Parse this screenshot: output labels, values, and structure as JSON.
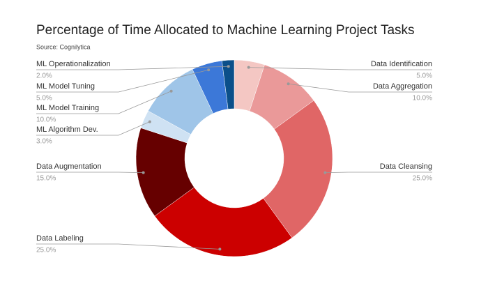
{
  "chart_data": {
    "type": "donut",
    "title": "Percentage of Time Allocated to Machine Learning Project Tasks",
    "subtitle": "Source: Cognilytica",
    "categories": [
      "Data Identification",
      "Data Aggregation",
      "Data Cleansing",
      "Data Labeling",
      "Data Augmentation",
      "ML Algorithm Dev.",
      "ML Model Training",
      "ML Model Tuning",
      "ML Operationalization"
    ],
    "values": [
      5,
      10,
      25,
      25,
      15,
      3,
      10,
      5,
      2
    ],
    "value_labels": [
      "5.0%",
      "10.0%",
      "25.0%",
      "25.0%",
      "15.0%",
      "3.0%",
      "10.0%",
      "5.0%",
      "2.0%"
    ],
    "colors": [
      "#f4c7c3",
      "#ea9999",
      "#e06666",
      "#cc0000",
      "#660000",
      "#cfe2f3",
      "#9fc5e8",
      "#3c78d8",
      "#0b4f8a"
    ]
  }
}
